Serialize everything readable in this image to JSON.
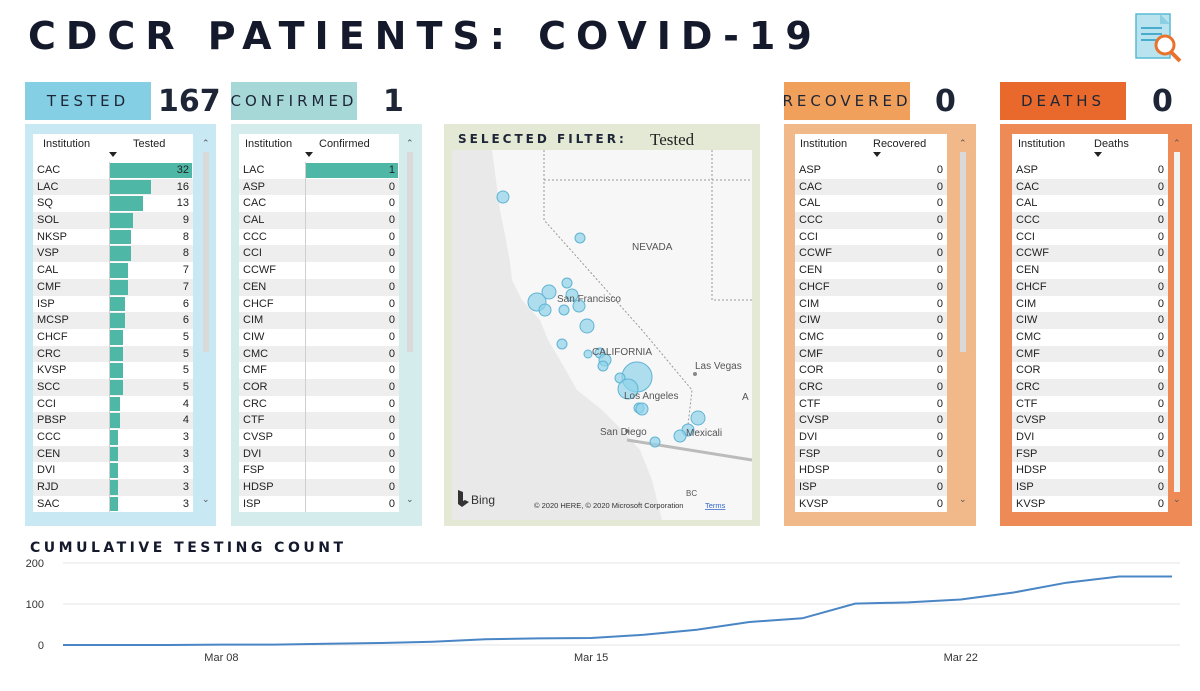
{
  "header": {
    "title": "CDCR PATIENTS: COVID-19",
    "report_icon": "document-search-icon"
  },
  "kpis": {
    "tested": {
      "label": "TESTED",
      "value": "167",
      "color": "#84cfe3"
    },
    "confirmed": {
      "label": "CONFIRMED",
      "value": "1",
      "color": "#a6d8d8"
    },
    "recovered": {
      "label": "RECOVERED",
      "value": "0",
      "color": "#f0a05a"
    },
    "deaths": {
      "label": "DEATHS",
      "value": "0",
      "color": "#e8692b"
    }
  },
  "tested_table": {
    "col_institution": "Institution",
    "col_value": "Tested",
    "max": 32,
    "rows": [
      {
        "name": "CAC",
        "value": 32
      },
      {
        "name": "LAC",
        "value": 16
      },
      {
        "name": "SQ",
        "value": 13
      },
      {
        "name": "SOL",
        "value": 9
      },
      {
        "name": "NKSP",
        "value": 8
      },
      {
        "name": "VSP",
        "value": 8
      },
      {
        "name": "CAL",
        "value": 7
      },
      {
        "name": "CMF",
        "value": 7
      },
      {
        "name": "ISP",
        "value": 6
      },
      {
        "name": "MCSP",
        "value": 6
      },
      {
        "name": "CHCF",
        "value": 5
      },
      {
        "name": "CRC",
        "value": 5
      },
      {
        "name": "KVSP",
        "value": 5
      },
      {
        "name": "SCC",
        "value": 5
      },
      {
        "name": "CCI",
        "value": 4
      },
      {
        "name": "PBSP",
        "value": 4
      },
      {
        "name": "CCC",
        "value": 3
      },
      {
        "name": "CEN",
        "value": 3
      },
      {
        "name": "DVI",
        "value": 3
      },
      {
        "name": "RJD",
        "value": 3
      },
      {
        "name": "SAC",
        "value": 3
      }
    ]
  },
  "confirmed_table": {
    "col_institution": "Institution",
    "col_value": "Confirmed",
    "max": 1,
    "rows": [
      {
        "name": "LAC",
        "value": 1
      },
      {
        "name": "ASP",
        "value": 0
      },
      {
        "name": "CAC",
        "value": 0
      },
      {
        "name": "CAL",
        "value": 0
      },
      {
        "name": "CCC",
        "value": 0
      },
      {
        "name": "CCI",
        "value": 0
      },
      {
        "name": "CCWF",
        "value": 0
      },
      {
        "name": "CEN",
        "value": 0
      },
      {
        "name": "CHCF",
        "value": 0
      },
      {
        "name": "CIM",
        "value": 0
      },
      {
        "name": "CIW",
        "value": 0
      },
      {
        "name": "CMC",
        "value": 0
      },
      {
        "name": "CMF",
        "value": 0
      },
      {
        "name": "COR",
        "value": 0
      },
      {
        "name": "CRC",
        "value": 0
      },
      {
        "name": "CTF",
        "value": 0
      },
      {
        "name": "CVSP",
        "value": 0
      },
      {
        "name": "DVI",
        "value": 0
      },
      {
        "name": "FSP",
        "value": 0
      },
      {
        "name": "HDSP",
        "value": 0
      },
      {
        "name": "ISP",
        "value": 0
      }
    ]
  },
  "recovered_table": {
    "col_institution": "Institution",
    "col_value": "Recovered",
    "rows": [
      {
        "name": "ASP",
        "value": 0
      },
      {
        "name": "CAC",
        "value": 0
      },
      {
        "name": "CAL",
        "value": 0
      },
      {
        "name": "CCC",
        "value": 0
      },
      {
        "name": "CCI",
        "value": 0
      },
      {
        "name": "CCWF",
        "value": 0
      },
      {
        "name": "CEN",
        "value": 0
      },
      {
        "name": "CHCF",
        "value": 0
      },
      {
        "name": "CIM",
        "value": 0
      },
      {
        "name": "CIW",
        "value": 0
      },
      {
        "name": "CMC",
        "value": 0
      },
      {
        "name": "CMF",
        "value": 0
      },
      {
        "name": "COR",
        "value": 0
      },
      {
        "name": "CRC",
        "value": 0
      },
      {
        "name": "CTF",
        "value": 0
      },
      {
        "name": "CVSP",
        "value": 0
      },
      {
        "name": "DVI",
        "value": 0
      },
      {
        "name": "FSP",
        "value": 0
      },
      {
        "name": "HDSP",
        "value": 0
      },
      {
        "name": "ISP",
        "value": 0
      },
      {
        "name": "KVSP",
        "value": 0
      }
    ]
  },
  "deaths_table": {
    "col_institution": "Institution",
    "col_value": "Deaths",
    "rows": [
      {
        "name": "ASP",
        "value": 0
      },
      {
        "name": "CAC",
        "value": 0
      },
      {
        "name": "CAL",
        "value": 0
      },
      {
        "name": "CCC",
        "value": 0
      },
      {
        "name": "CCI",
        "value": 0
      },
      {
        "name": "CCWF",
        "value": 0
      },
      {
        "name": "CEN",
        "value": 0
      },
      {
        "name": "CHCF",
        "value": 0
      },
      {
        "name": "CIM",
        "value": 0
      },
      {
        "name": "CIW",
        "value": 0
      },
      {
        "name": "CMC",
        "value": 0
      },
      {
        "name": "CMF",
        "value": 0
      },
      {
        "name": "COR",
        "value": 0
      },
      {
        "name": "CRC",
        "value": 0
      },
      {
        "name": "CTF",
        "value": 0
      },
      {
        "name": "CVSP",
        "value": 0
      },
      {
        "name": "DVI",
        "value": 0
      },
      {
        "name": "FSP",
        "value": 0
      },
      {
        "name": "HDSP",
        "value": 0
      },
      {
        "name": "ISP",
        "value": 0
      },
      {
        "name": "KVSP",
        "value": 0
      }
    ]
  },
  "map": {
    "filter_label": "SELECTED FILTER:",
    "filter_value": "Tested",
    "labels": {
      "nevada": "NEVADA",
      "san_francisco": "San Francisco",
      "california": "CALIFORNIA",
      "las_vegas": "Las Vegas",
      "los_angeles": "Los Angeles",
      "san_diego": "San Diego",
      "mexicali": "Mexicali",
      "az": "A",
      "bc": "BC"
    },
    "attribution": "© 2020 HERE, © 2020 Microsoft Corporation",
    "terms": "Terms",
    "bing": "Bing"
  },
  "cumulative_chart": {
    "title": "CUMULATIVE TESTING COUNT",
    "ytick_labels": [
      "200",
      "100",
      "0"
    ],
    "xtick_labels": [
      "Mar 08",
      "Mar 15",
      "Mar 22"
    ],
    "line_color": "#4a86c5"
  },
  "chart_data": {
    "type": "line",
    "title": "CUMULATIVE TESTING COUNT",
    "xlabel": "",
    "ylabel": "",
    "ylim": [
      0,
      200
    ],
    "yticks": [
      0,
      100,
      200
    ],
    "x": [
      "Mar 05",
      "Mar 06",
      "Mar 07",
      "Mar 08",
      "Mar 09",
      "Mar 10",
      "Mar 11",
      "Mar 12",
      "Mar 13",
      "Mar 14",
      "Mar 15",
      "Mar 16",
      "Mar 17",
      "Mar 18",
      "Mar 19",
      "Mar 20",
      "Mar 21",
      "Mar 22",
      "Mar 23",
      "Mar 24",
      "Mar 25",
      "Mar 26"
    ],
    "xtick_labels": [
      "Mar 08",
      "Mar 15",
      "Mar 22"
    ],
    "series": [
      {
        "name": "Cumulative Tested",
        "values": [
          0,
          0,
          0,
          1,
          1,
          3,
          5,
          8,
          14,
          16,
          17,
          25,
          37,
          56,
          65,
          101,
          104,
          111,
          128,
          152,
          167,
          167
        ]
      }
    ]
  }
}
